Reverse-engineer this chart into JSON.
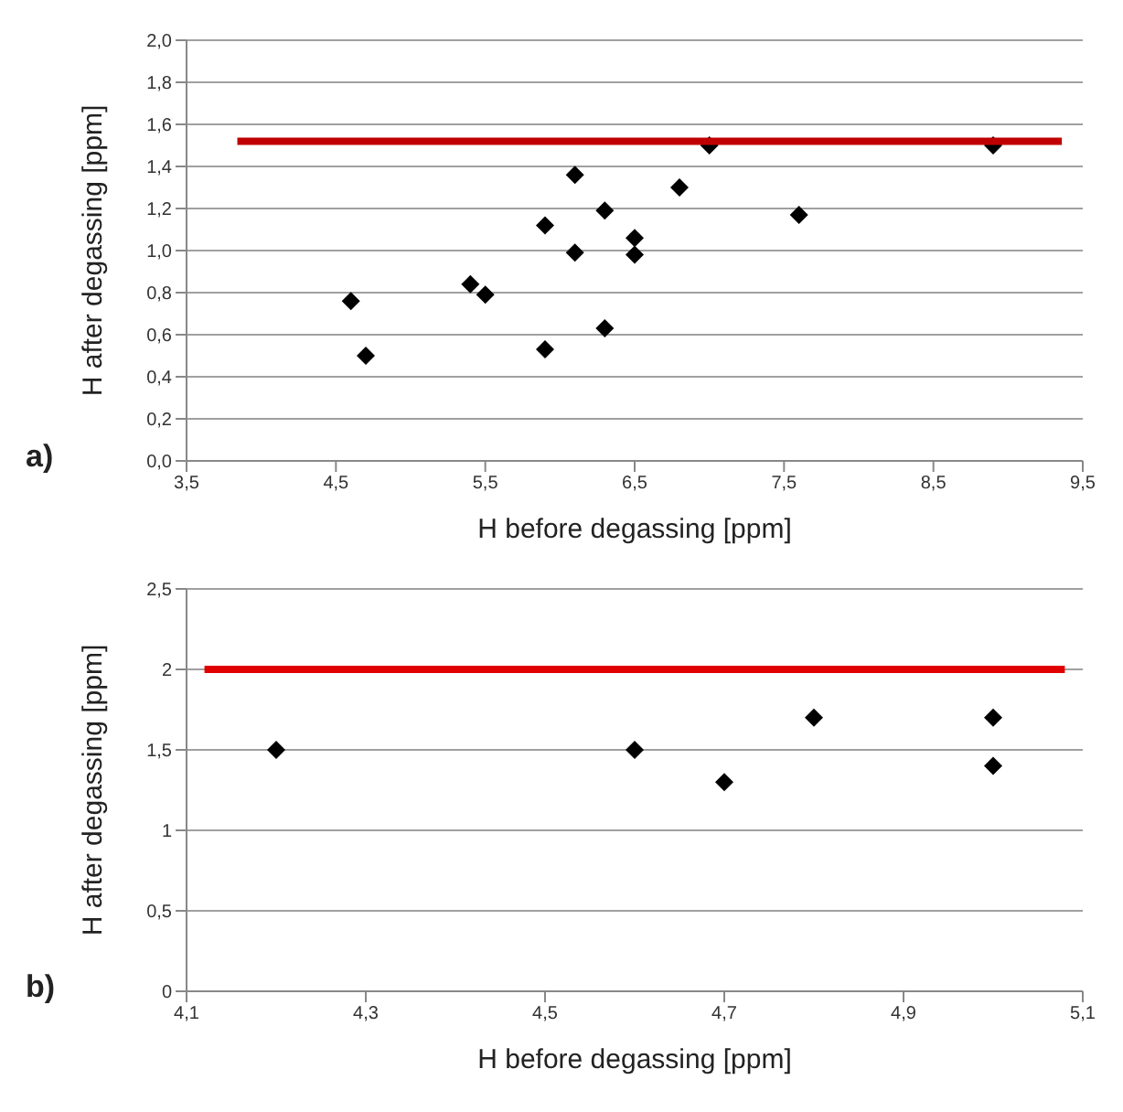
{
  "chart_data": [
    {
      "type": "scatter",
      "xlabel": "H before degassing  [ppm]",
      "ylabel": "H after degassing  [ppm]",
      "annotations": [
        "a)"
      ],
      "xlim": [
        3.5,
        9.5
      ],
      "xticks": [
        {
          "value": 3.5,
          "label": "3,5"
        },
        {
          "value": 4.5,
          "label": "4,5"
        },
        {
          "value": 5.5,
          "label": "5,5"
        },
        {
          "value": 6.5,
          "label": "6,5"
        },
        {
          "value": 7.5,
          "label": "7,5"
        },
        {
          "value": 8.5,
          "label": "8,5"
        },
        {
          "value": 9.5,
          "label": "9,5"
        }
      ],
      "ylim": [
        0,
        2.0
      ],
      "yticks": [
        {
          "value": 0,
          "label": "0,0"
        },
        {
          "value": 0.2,
          "label": "0,2"
        },
        {
          "value": 0.4,
          "label": "0,4"
        },
        {
          "value": 0.6,
          "label": "0,6"
        },
        {
          "value": 0.8,
          "label": "0,8"
        },
        {
          "value": 1.0,
          "label": "1,0"
        },
        {
          "value": 1.2,
          "label": "1,2"
        },
        {
          "value": 1.4,
          "label": "1,4"
        },
        {
          "value": 1.6,
          "label": "1,6"
        },
        {
          "value": 1.8,
          "label": "1,8"
        },
        {
          "value": 2.0,
          "label": "2,0"
        }
      ],
      "grid": "y",
      "series": [
        {
          "marker": "diamond",
          "color": "#000000",
          "x": [
            4.6,
            4.7,
            5.4,
            5.5,
            5.9,
            5.9,
            6.1,
            6.1,
            6.3,
            6.3,
            6.5,
            6.5,
            6.8,
            7.0,
            7.6,
            8.9
          ],
          "values": [
            0.76,
            0.5,
            0.84,
            0.79,
            1.12,
            0.53,
            1.36,
            0.99,
            1.19,
            0.63,
            1.06,
            0.98,
            1.3,
            1.5,
            1.17,
            1.5
          ]
        },
        {
          "type": "line",
          "marker": "none",
          "color": "#c00000",
          "x": [
            3.84,
            9.36
          ],
          "values": [
            1.52,
            1.52
          ]
        }
      ]
    },
    {
      "type": "scatter",
      "xlabel": "H before degassing  [ppm]",
      "ylabel": "H after degassing  [ppm]",
      "annotations": [
        "b)"
      ],
      "xlim": [
        4.1,
        5.1
      ],
      "xticks": [
        {
          "value": 4.1,
          "label": "4,1"
        },
        {
          "value": 4.3,
          "label": "4,3"
        },
        {
          "value": 4.5,
          "label": "4,5"
        },
        {
          "value": 4.7,
          "label": "4,7"
        },
        {
          "value": 4.9,
          "label": "4,9"
        },
        {
          "value": 5.1,
          "label": "5,1"
        }
      ],
      "ylim": [
        0,
        2.5
      ],
      "yticks": [
        0,
        {
          "value": 0.5,
          "label": "0,5"
        },
        1,
        {
          "value": 1.5,
          "label": "1,5"
        },
        2,
        {
          "value": 2.5,
          "label": "2,5"
        }
      ],
      "grid": "y",
      "series": [
        {
          "marker": "diamond",
          "color": "#000000",
          "x": [
            4.2,
            4.6,
            4.7,
            4.8,
            5.0,
            5.0
          ],
          "values": [
            1.5,
            1.5,
            1.3,
            1.7,
            1.7,
            1.4
          ]
        },
        {
          "type": "line",
          "marker": "none",
          "color": "#e00000",
          "x": [
            4.12,
            5.08
          ],
          "values": [
            2,
            2
          ]
        }
      ]
    }
  ]
}
